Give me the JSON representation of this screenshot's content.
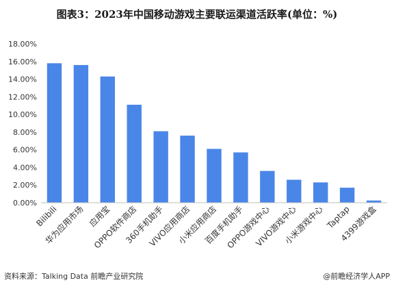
{
  "title": "图表3：2023年中国移动游戏主要联运渠道活跃率(单位：%)",
  "footer": {
    "source": "资料来源：Talking Data 前瞻产业研究院",
    "credit": "@前瞻经济学人APP"
  },
  "colors": {
    "bar": "#4a86e8",
    "axis": "#bfbfbf"
  },
  "chart_data": {
    "type": "bar",
    "categories": [
      "Bilibili",
      "华为应用市场",
      "应用宝",
      "OPPO软件商店",
      "360手机助手",
      "VIVO应用商店",
      "小米应用商店",
      "百度手机助手",
      "OPPO游戏中心",
      "VIVO游戏中心",
      "小米游戏中心",
      "Taptap",
      "4399游戏盒"
    ],
    "values": [
      15.8,
      15.6,
      14.3,
      11.1,
      8.1,
      7.6,
      6.1,
      5.7,
      3.6,
      2.6,
      2.3,
      1.7,
      0.25
    ],
    "ylim": [
      0,
      18
    ],
    "yticks": [
      0,
      2,
      4,
      6,
      8,
      10,
      12,
      14,
      16,
      18
    ],
    "ytick_labels": [
      "0.00%",
      "2.00%",
      "4.00%",
      "6.00%",
      "8.00%",
      "10.00%",
      "12.00%",
      "14.00%",
      "16.00%",
      "18.00%"
    ],
    "grid": false,
    "legend": "none"
  }
}
